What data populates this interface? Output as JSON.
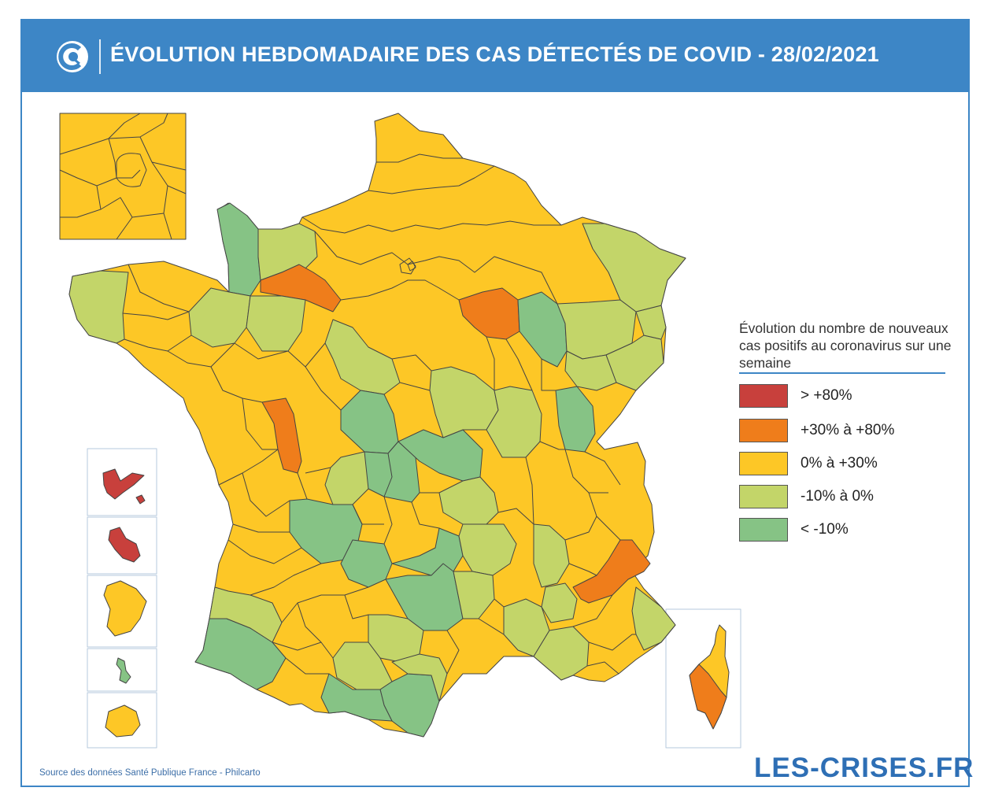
{
  "header": {
    "title": "ÉVOLUTION HEBDOMADAIRE DES CAS DÉTECTÉS DE COVID - 28/02/2021",
    "logo_icon": "les-crises-c-icon"
  },
  "colors": {
    "header_blue": "#3d86c6",
    "red": "#c8403c",
    "orange": "#ef7d1b",
    "yellow": "#fdc726",
    "light_green": "#c3d569",
    "green": "#86c385",
    "border": "#444444"
  },
  "legend": {
    "title": "Évolution du nombre de nouveaux cas positifs au coronavirus sur une semaine",
    "items": [
      {
        "label": "> +80%",
        "color": "#c8403c"
      },
      {
        "label": "+30% à +80%",
        "color": "#ef7d1b"
      },
      {
        "label": "0% à +30%",
        "color": "#fdc726"
      },
      {
        "label": "-10% à 0%",
        "color": "#c3d569"
      },
      {
        "label": "< -10%",
        "color": "#86c385"
      }
    ]
  },
  "footer": {
    "source": "Source des données Santé Publique France - Philcarto",
    "brand": "LES-CRISES.FR"
  }
}
